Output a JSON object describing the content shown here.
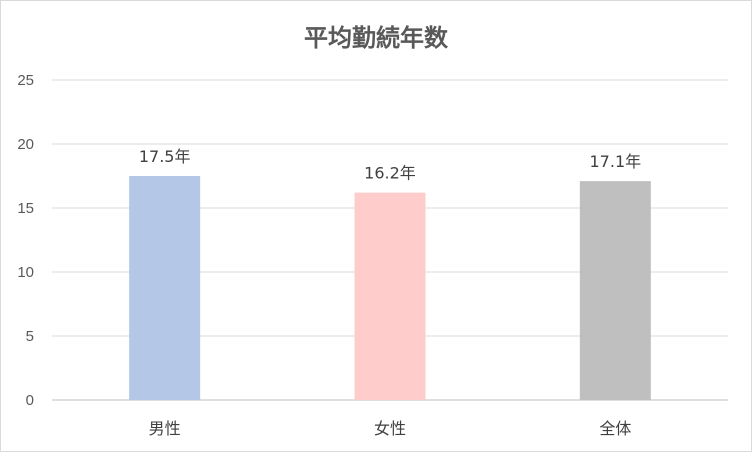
{
  "chart_data": {
    "type": "bar",
    "title": "平均勤続年数",
    "categories": [
      "男性",
      "女性",
      "全体"
    ],
    "values": [
      17.5,
      16.2,
      17.1
    ],
    "data_labels": [
      "17.5年",
      "16.2年",
      "17.1年"
    ],
    "colors": [
      "#b4c7e7",
      "#ffcccc",
      "#bfbfbf"
    ],
    "ylim": [
      0,
      25
    ],
    "yticks": [
      0,
      5,
      10,
      15,
      20,
      25
    ],
    "xlabel": "",
    "ylabel": "",
    "grid": true,
    "legend": "none"
  }
}
